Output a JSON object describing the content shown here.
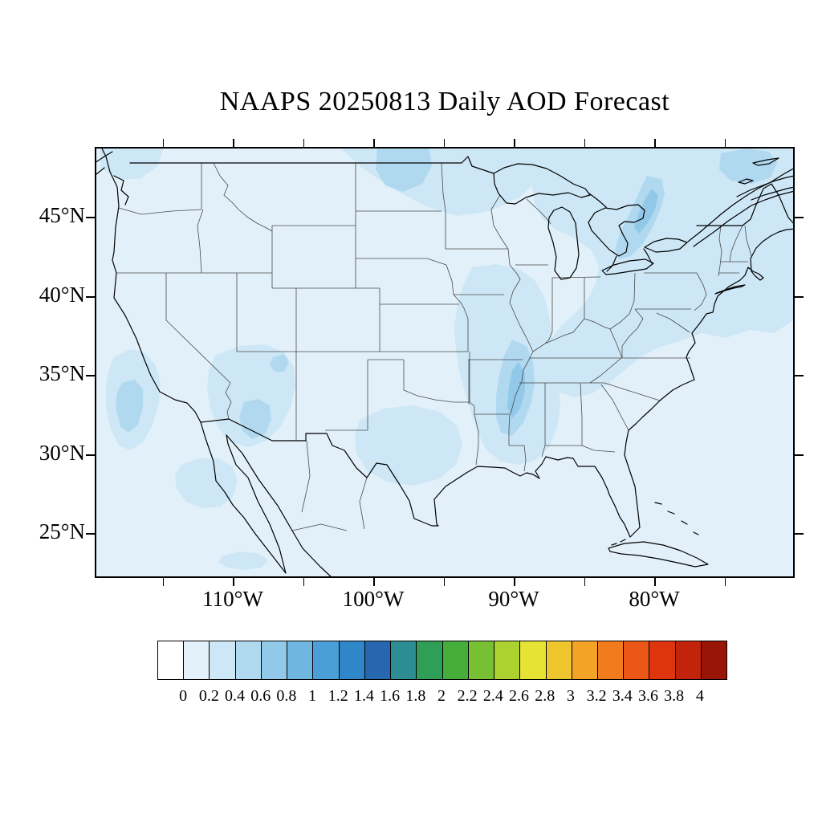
{
  "title": "NAAPS 20250813 Daily AOD Forecast",
  "map": {
    "lat_tick_labels": [
      "45°N",
      "40°N",
      "35°N",
      "30°N",
      "25°N"
    ],
    "lon_tick_labels": [
      "110°W",
      "100°W",
      "90°W",
      "80°W"
    ],
    "colors": {
      "base": "#e2f0f9",
      "aod1": "#cde7f6",
      "aod2": "#b0d9f0",
      "aod3": "#92c9e9",
      "coast": "#000000",
      "stateline": "#4a4a4a",
      "frame": "#000000"
    }
  },
  "colorbar": {
    "tick_labels": [
      "0",
      "0.2",
      "0.4",
      "0.6",
      "0.8",
      "1",
      "1.2",
      "1.4",
      "1.6",
      "1.8",
      "2",
      "2.2",
      "2.4",
      "2.6",
      "2.8",
      "3",
      "3.2",
      "3.4",
      "3.6",
      "3.8",
      "4"
    ],
    "colors": [
      "#ffffff",
      "#e3f1fa",
      "#cde7f6",
      "#b0d9f0",
      "#92c9e9",
      "#6fb6e1",
      "#4b9fd8",
      "#2f86c8",
      "#2767b0",
      "#2e8d93",
      "#2f9e57",
      "#45ad39",
      "#78c033",
      "#abd22e",
      "#e6e334",
      "#efc52d",
      "#f3a326",
      "#f07c1e",
      "#ea5716",
      "#de350f",
      "#c2230b",
      "#991607"
    ]
  },
  "chart_data": {
    "type": "heatmap",
    "title": "NAAPS 20250813 Daily AOD Forecast",
    "model": "NAAPS",
    "forecast_date": "20250813",
    "variable": "Daily Aerosol Optical Depth (AOD) Forecast",
    "region": "Continental United States, southern Canada, northern Mexico",
    "x_axis": {
      "ticks": [
        "110°W",
        "100°W",
        "90°W",
        "80°W"
      ]
    },
    "y_axis": {
      "ticks": [
        "45°N",
        "40°N",
        "35°N",
        "30°N",
        "25°N"
      ]
    },
    "colorbar": {
      "min": 0,
      "max": 4,
      "step": 0.2,
      "tick_labels": [
        "0",
        "0.2",
        "0.4",
        "0.6",
        "0.8",
        "1",
        "1.2",
        "1.4",
        "1.6",
        "1.8",
        "2",
        "2.2",
        "2.4",
        "2.6",
        "2.8",
        "3",
        "3.2",
        "3.4",
        "3.6",
        "3.8",
        "4"
      ],
      "colors": [
        "#ffffff",
        "#e3f1fa",
        "#cde7f6",
        "#b0d9f0",
        "#92c9e9",
        "#6fb6e1",
        "#4b9fd8",
        "#2f86c8",
        "#2767b0",
        "#2e8d93",
        "#2f9e57",
        "#45ad39",
        "#78c033",
        "#abd22e",
        "#e6e334",
        "#efc52d",
        "#f3a326",
        "#f07c1e",
        "#ea5716",
        "#de350f",
        "#c2230b",
        "#991607"
      ]
    },
    "observed_field": [
      {
        "area": "Most of CONUS and adjacent oceans",
        "aod": "0.0-0.2"
      },
      {
        "area": "Northern Plains / central Canada along top of map",
        "aod": "0.2-0.4"
      },
      {
        "area": "Great Lakes, Ontario, Quebec, New England, northeast Atlantic corner",
        "aod": "0.2-0.4"
      },
      {
        "area": "Quebec / Ottawa valley band",
        "aod": "0.4-0.6"
      },
      {
        "area": "Gulf of St. Lawrence (top-right corner)",
        "aod": "0.4-0.6"
      },
      {
        "area": "Mid-Mississippi valley (MO/IL/KY/TN/MS)",
        "aod": "0.2-0.4"
      },
      {
        "area": "Western Tennessee / Mississippi band",
        "aod": "0.4-0.6"
      },
      {
        "area": "Central and eastern Texas",
        "aod": "0.2-0.4"
      },
      {
        "area": "Arizona / New Mexico",
        "aod": "0.2-0.4 with small 0.4-0.6 cores"
      },
      {
        "area": "California coast and valley",
        "aod": "0.2-0.4 with 0.4-0.6 core"
      },
      {
        "area": "Northwest Mexico / Sonora",
        "aod": "0.2-0.4"
      }
    ]
  }
}
